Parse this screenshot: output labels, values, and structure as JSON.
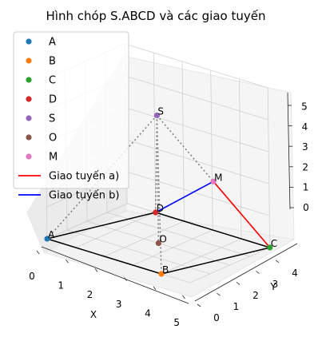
{
  "chart_data": {
    "type": "scatter",
    "title": "Hình chóp S.ABCD và các giao tuyến",
    "xlabel": "X",
    "ylabel": "Y",
    "zlabel": "",
    "xlim": [
      0,
      5
    ],
    "ylim": [
      0,
      4
    ],
    "zlim": [
      0,
      5
    ],
    "x_ticks": [
      "0",
      "1",
      "2",
      "3",
      "4",
      "5"
    ],
    "y_ticks": [
      "0",
      "1",
      "2",
      "3",
      "4"
    ],
    "z_ticks": [
      "0",
      "1",
      "2",
      "3",
      "4",
      "5"
    ],
    "grid": true,
    "legend_position": "upper left",
    "points": [
      {
        "name": "A",
        "x": 0,
        "y": 0,
        "z": 0,
        "color": "#1f77b4"
      },
      {
        "name": "B",
        "x": 4,
        "y": 0,
        "z": 0,
        "color": "#ff7f0e"
      },
      {
        "name": "C",
        "x": 5,
        "y": 4,
        "z": 0,
        "color": "#2ca02c"
      },
      {
        "name": "D",
        "x": 1,
        "y": 4,
        "z": 0,
        "color": "#d62728"
      },
      {
        "name": "S",
        "x": 2.5,
        "y": 2,
        "z": 4,
        "color": "#9467bd"
      },
      {
        "name": "O",
        "x": 2.5,
        "y": 2,
        "z": 0,
        "color": "#8c564b"
      },
      {
        "name": "M",
        "x": 3.75,
        "y": 3,
        "z": 2,
        "color": "#e377c2"
      }
    ],
    "lines": [
      {
        "name": "Giao tuyến a)",
        "from": "M",
        "to": "C",
        "color": "#ff0000"
      },
      {
        "name": "Giao tuyến b)",
        "from": "D",
        "to": "M",
        "color": "#0000ff"
      }
    ]
  }
}
